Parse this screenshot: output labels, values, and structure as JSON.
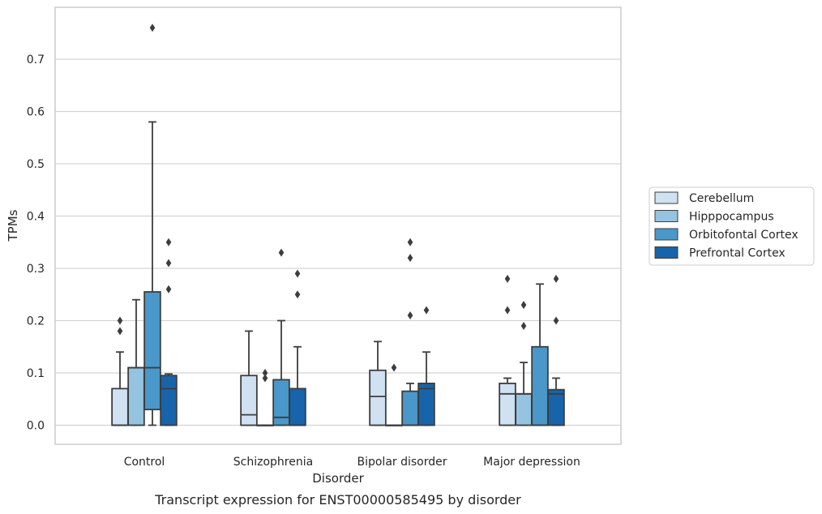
{
  "chart_data": {
    "type": "box",
    "title": "",
    "caption": "Transcript expression for ENST00000585495 by disorder",
    "xlabel": "Disorder",
    "ylabel": "TPMs",
    "ylim": [
      -0.037,
      0.8
    ],
    "yticks": [
      0.0,
      0.1,
      0.2,
      0.3,
      0.4,
      0.5,
      0.6,
      0.7
    ],
    "ytick_labels": [
      "0.0",
      "0.1",
      "0.2",
      "0.3",
      "0.4",
      "0.5",
      "0.6",
      "0.7"
    ],
    "grid": "horizontal",
    "legend_position": "right",
    "categories": [
      "Control",
      "Schizophrenia",
      "Bipolar disorder",
      "Major depression"
    ],
    "series": [
      {
        "name": "Cerebellum",
        "color": "#d0e1f2",
        "boxes": [
          {
            "whislo": 0.0,
            "q1": 0.0,
            "med": 0.0,
            "q3": 0.07,
            "whishi": 0.14,
            "fliers": [
              0.18,
              0.2
            ]
          },
          {
            "whislo": 0.0,
            "q1": 0.0,
            "med": 0.02,
            "q3": 0.095,
            "whishi": 0.18,
            "fliers": []
          },
          {
            "whislo": 0.0,
            "q1": 0.0,
            "med": 0.055,
            "q3": 0.105,
            "whishi": 0.16,
            "fliers": []
          },
          {
            "whislo": 0.0,
            "q1": 0.0,
            "med": 0.06,
            "q3": 0.08,
            "whishi": 0.09,
            "fliers": [
              0.22,
              0.28
            ]
          }
        ]
      },
      {
        "name": "Hipppocampus",
        "color": "#94c4df",
        "boxes": [
          {
            "whislo": 0.0,
            "q1": 0.0,
            "med": 0.11,
            "q3": 0.11,
            "whishi": 0.24,
            "fliers": []
          },
          {
            "whislo": 0.0,
            "q1": 0.0,
            "med": 0.0,
            "q3": 0.0,
            "whishi": 0.0,
            "fliers": [
              0.09,
              0.1
            ]
          },
          {
            "whislo": 0.0,
            "q1": 0.0,
            "med": 0.0,
            "q3": 0.0,
            "whishi": 0.0,
            "fliers": [
              0.11
            ]
          },
          {
            "whislo": 0.0,
            "q1": 0.0,
            "med": 0.06,
            "q3": 0.06,
            "whishi": 0.12,
            "fliers": [
              0.19,
              0.23
            ]
          }
        ]
      },
      {
        "name": "Orbitofontal Cortex",
        "color": "#4a98c9",
        "boxes": [
          {
            "whislo": 0.0,
            "q1": 0.03,
            "med": 0.11,
            "q3": 0.255,
            "whishi": 0.58,
            "fliers": [
              0.76
            ]
          },
          {
            "whislo": 0.0,
            "q1": 0.0,
            "med": 0.015,
            "q3": 0.087,
            "whishi": 0.2,
            "fliers": [
              0.33
            ]
          },
          {
            "whislo": 0.0,
            "q1": 0.0,
            "med": 0.0,
            "q3": 0.065,
            "whishi": 0.08,
            "fliers": [
              0.21,
              0.32,
              0.35
            ]
          },
          {
            "whislo": 0.0,
            "q1": 0.0,
            "med": 0.0,
            "q3": 0.15,
            "whishi": 0.27,
            "fliers": []
          }
        ]
      },
      {
        "name": "Prefrontal Cortex",
        "color": "#1764ab",
        "boxes": [
          {
            "whislo": 0.0,
            "q1": 0.0,
            "med": 0.07,
            "q3": 0.095,
            "whishi": 0.098,
            "fliers": [
              0.26,
              0.31,
              0.35
            ]
          },
          {
            "whislo": 0.0,
            "q1": 0.0,
            "med": 0.0,
            "q3": 0.07,
            "whishi": 0.15,
            "fliers": [
              0.25,
              0.29
            ]
          },
          {
            "whislo": 0.0,
            "q1": 0.0,
            "med": 0.07,
            "q3": 0.08,
            "whishi": 0.14,
            "fliers": [
              0.22
            ]
          },
          {
            "whislo": 0.0,
            "q1": 0.0,
            "med": 0.06,
            "q3": 0.068,
            "whishi": 0.09,
            "fliers": [
              0.2,
              0.28
            ]
          }
        ]
      }
    ]
  }
}
